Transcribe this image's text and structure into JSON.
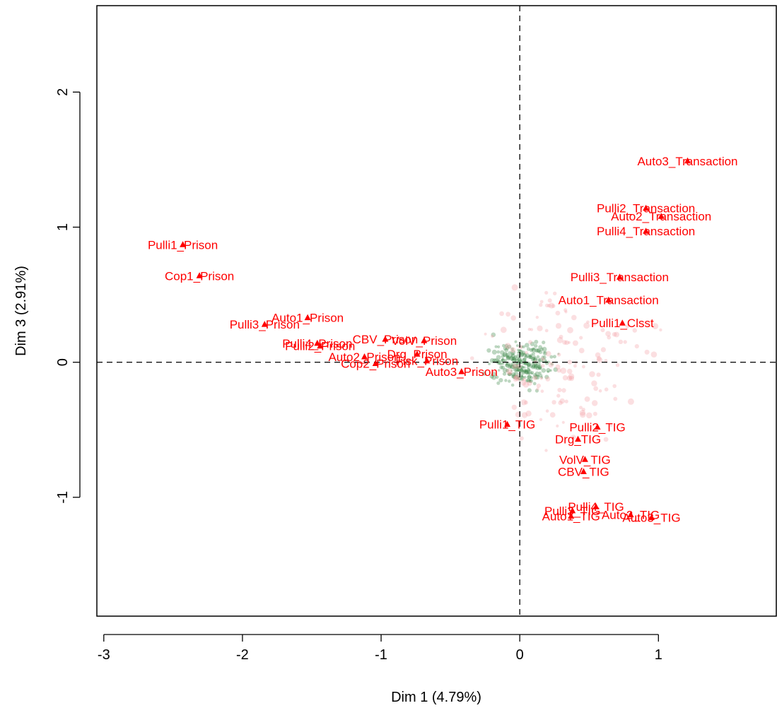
{
  "chart_data": {
    "type": "scatter",
    "title": "",
    "xlabel": "Dim 1 (4.79%)",
    "ylabel": "Dim 3 (2.91%)",
    "xlim": [
      -3.05,
      1.85
    ],
    "ylim": [
      -1.88,
      2.64
    ],
    "xticks": [
      -3,
      -2,
      -1,
      0,
      1
    ],
    "yticks": [
      -1,
      0,
      1,
      2
    ],
    "grid": false,
    "reference_lines": {
      "x": 0,
      "y": 0,
      "style": "dashed"
    },
    "colors": {
      "labels": "#ff0000",
      "cloud_red": "#f3a3aa",
      "cloud_green": "#3f8a4a"
    },
    "series": [
      {
        "name": "",
        "marker": "triangle",
        "points": [
          {
            "label": "Pulli1_Prison",
            "x": -2.43,
            "y": 0.87
          },
          {
            "label": "Cop1_Prison",
            "x": -2.31,
            "y": 0.64
          },
          {
            "label": "Pulli3_Prison",
            "x": -1.84,
            "y": 0.28
          },
          {
            "label": "Auto1_Prison",
            "x": -1.53,
            "y": 0.33
          },
          {
            "label": "Pulli4_Prison",
            "x": -1.46,
            "y": 0.14
          },
          {
            "label": "Pulli2_Prison",
            "x": -1.44,
            "y": 0.12
          },
          {
            "label": "Auto2_Prison",
            "x": -1.12,
            "y": 0.04
          },
          {
            "label": "Cop2_Prison",
            "x": -1.04,
            "y": -0.01
          },
          {
            "label": "CBV_Prison",
            "x": -0.97,
            "y": 0.17
          },
          {
            "label": "Drg_Prison",
            "x": -0.74,
            "y": 0.06
          },
          {
            "label": "VolV_Prison",
            "x": -0.69,
            "y": 0.16
          },
          {
            "label": "Fisk_Prison",
            "x": -0.67,
            "y": 0.01
          },
          {
            "label": "Auto3_Prison",
            "x": -0.42,
            "y": -0.07
          },
          {
            "label": "Pulli1_TIG",
            "x": -0.09,
            "y": -0.46
          },
          {
            "label": "Pulli2_TIG",
            "x": 0.56,
            "y": -0.48
          },
          {
            "label": "Drg_TIG",
            "x": 0.42,
            "y": -0.57
          },
          {
            "label": "VolV_TIG",
            "x": 0.47,
            "y": -0.72
          },
          {
            "label": "CBV_TIG",
            "x": 0.46,
            "y": -0.81
          },
          {
            "label": "Pulli3_TIG",
            "x": 0.38,
            "y": -1.1
          },
          {
            "label": "Auto1_TIG",
            "x": 0.37,
            "y": -1.14
          },
          {
            "label": "Pulli4_TIG",
            "x": 0.55,
            "y": -1.07
          },
          {
            "label": "Auto2_TIG",
            "x": 0.8,
            "y": -1.13
          },
          {
            "label": "Auto3_TIG",
            "x": 0.95,
            "y": -1.15
          },
          {
            "label": "Auto3_Transaction",
            "x": 1.21,
            "y": 1.49
          },
          {
            "label": "Pulli2_Transaction",
            "x": 0.91,
            "y": 1.14
          },
          {
            "label": "Auto2_Transaction",
            "x": 1.02,
            "y": 1.08
          },
          {
            "label": "Pulli4_Transaction",
            "x": 0.91,
            "y": 0.97
          },
          {
            "label": "Pulli3_Transaction",
            "x": 0.72,
            "y": 0.63
          },
          {
            "label": "Auto1_Transaction",
            "x": 0.64,
            "y": 0.46
          },
          {
            "label": "Pulli1_Clsst",
            "x": 0.74,
            "y": 0.29
          }
        ]
      }
    ]
  }
}
